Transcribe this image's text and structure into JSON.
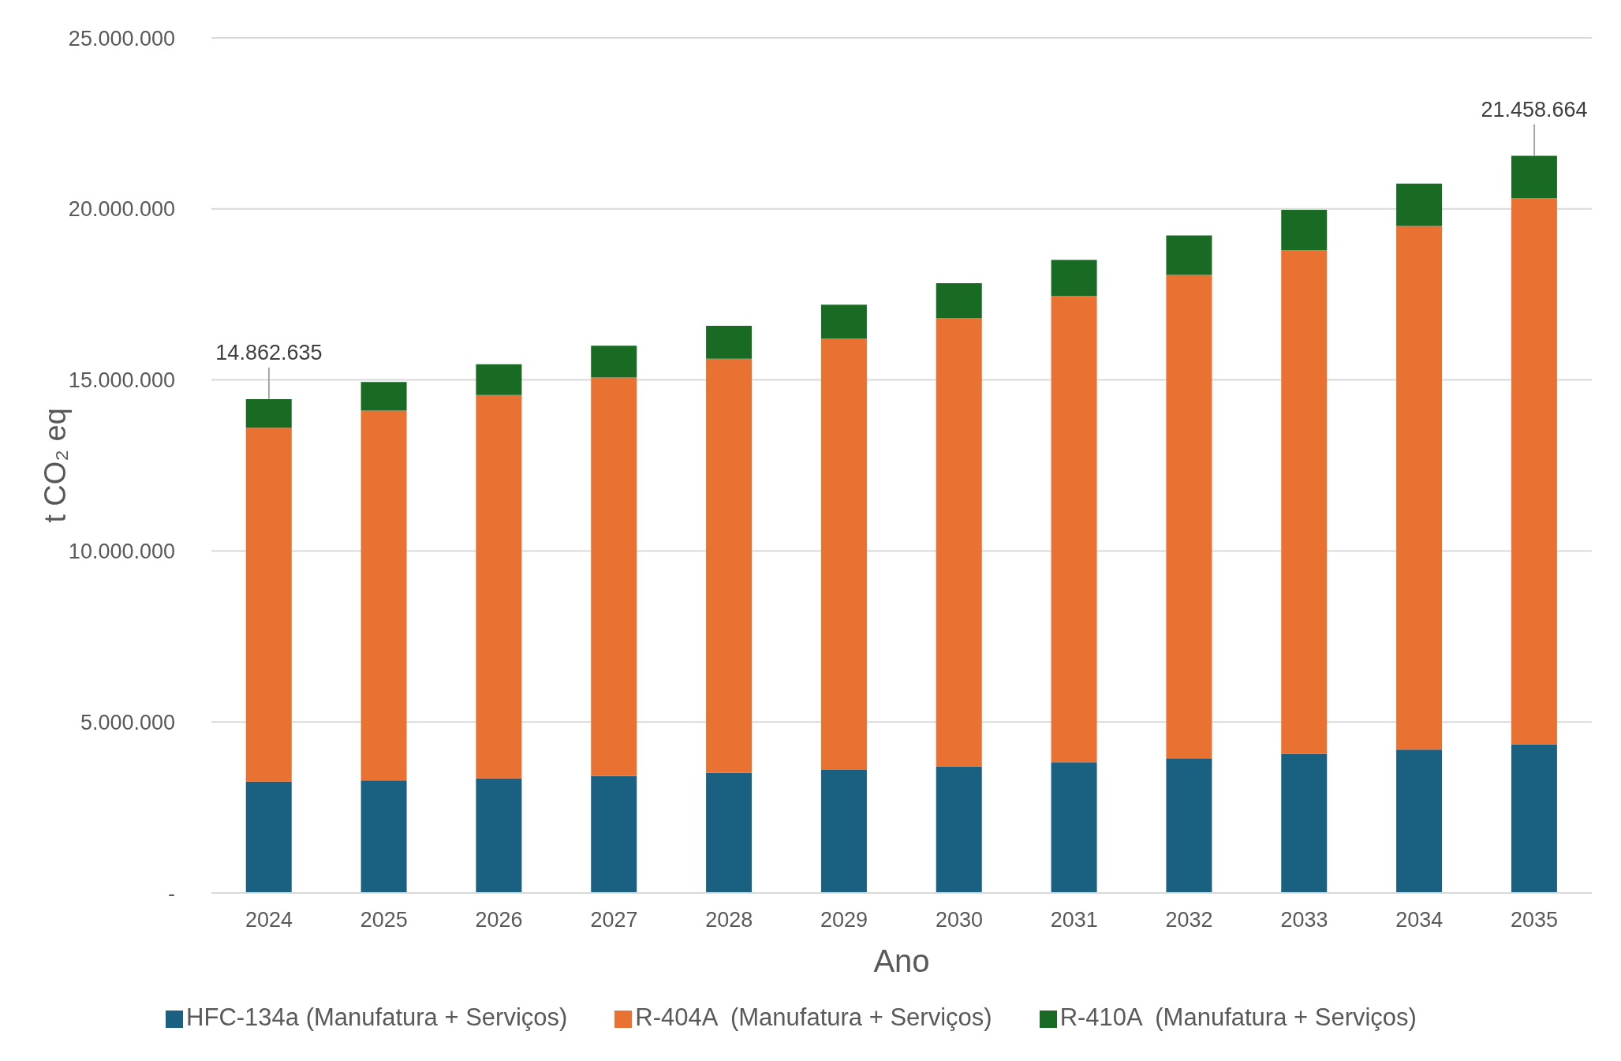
{
  "chart_data": {
    "type": "bar",
    "stacked": true,
    "xlabel": "Ano",
    "ylabel": "t CO₂ eq",
    "categories": [
      "2024",
      "2025",
      "2026",
      "2027",
      "2028",
      "2029",
      "2030",
      "2031",
      "2032",
      "2033",
      "2034",
      "2035"
    ],
    "series": [
      {
        "name": "HFC-134a (Manufatura + Serviços)",
        "color": "#1a6080",
        "values": [
          3260000,
          3290000,
          3350000,
          3420000,
          3510000,
          3600000,
          3700000,
          3820000,
          3940000,
          4070000,
          4190000,
          4350000
        ]
      },
      {
        "name": "R-404A  (Manufatura + Serviços)",
        "color": "#e97132",
        "values": [
          10340000,
          10810000,
          11210000,
          11650000,
          12110000,
          12610000,
          13110000,
          13630000,
          14130000,
          14720000,
          15310000,
          15960000
        ]
      },
      {
        "name": "R-410A  (Manufatura + Serviços)",
        "color": "#196b24",
        "values": [
          840000,
          840000,
          900000,
          930000,
          960000,
          990000,
          1020000,
          1060000,
          1150000,
          1180000,
          1240000,
          1240000
        ]
      }
    ],
    "ylim": [
      0,
      25000000
    ],
    "yticks": [
      {
        "value": 0,
        "label": "-"
      },
      {
        "value": 5000000,
        "label": "5.000.000"
      },
      {
        "value": 10000000,
        "label": "10.000.000"
      },
      {
        "value": 15000000,
        "label": "15.000.000"
      },
      {
        "value": 20000000,
        "label": "20.000.000"
      },
      {
        "value": 25000000,
        "label": "25.000.000"
      }
    ],
    "grid": "y",
    "legend": "bottom",
    "annotations": [
      {
        "text": "14.862.635",
        "x": "2024",
        "y": 14440000
      },
      {
        "text": "21.458.664",
        "x": "2035",
        "y": 21550000
      }
    ]
  }
}
